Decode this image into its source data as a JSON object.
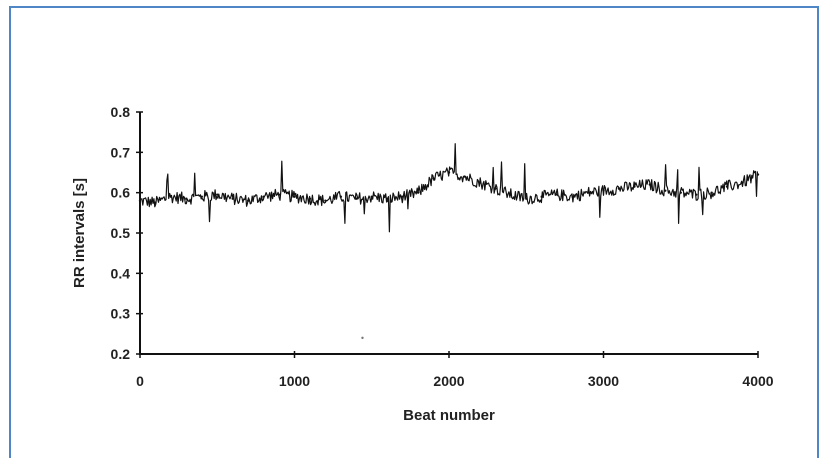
{
  "chart_data": {
    "type": "line",
    "title": "",
    "xlabel": "Beat number",
    "ylabel": "RR intervals [s]",
    "xlim": [
      0,
      4000
    ],
    "ylim": [
      0.2,
      0.8
    ],
    "xticks": [
      0,
      1000,
      2000,
      3000,
      4000
    ],
    "xtick_labels": [
      "0",
      "1000",
      "2000",
      "3000",
      "4000"
    ],
    "yticks": [
      0.2,
      0.3,
      0.4,
      0.5,
      0.6,
      0.7,
      0.8
    ],
    "ytick_labels": [
      "0.2",
      "0.3",
      "0.4",
      "0.5",
      "0.6",
      "0.7",
      "0.8"
    ],
    "grid": false,
    "legend": "none",
    "line_color": "#111111",
    "series": [
      {
        "name": "",
        "x": [
          0,
          100,
          200,
          300,
          400,
          500,
          600,
          700,
          800,
          900,
          1000,
          1100,
          1200,
          1300,
          1400,
          1500,
          1600,
          1700,
          1800,
          1900,
          2000,
          2100,
          2200,
          2300,
          2400,
          2500,
          2600,
          2700,
          2800,
          2900,
          3000,
          3100,
          3200,
          3300,
          3400,
          3500,
          3600,
          3700,
          3800,
          3900,
          4000
        ],
        "y": [
          0.58,
          0.575,
          0.59,
          0.585,
          0.59,
          0.595,
          0.585,
          0.58,
          0.59,
          0.595,
          0.59,
          0.585,
          0.58,
          0.59,
          0.585,
          0.59,
          0.585,
          0.59,
          0.6,
          0.635,
          0.65,
          0.64,
          0.625,
          0.61,
          0.595,
          0.585,
          0.59,
          0.595,
          0.59,
          0.6,
          0.605,
          0.61,
          0.615,
          0.62,
          0.605,
          0.6,
          0.595,
          0.6,
          0.615,
          0.625,
          0.645
        ]
      }
    ]
  }
}
